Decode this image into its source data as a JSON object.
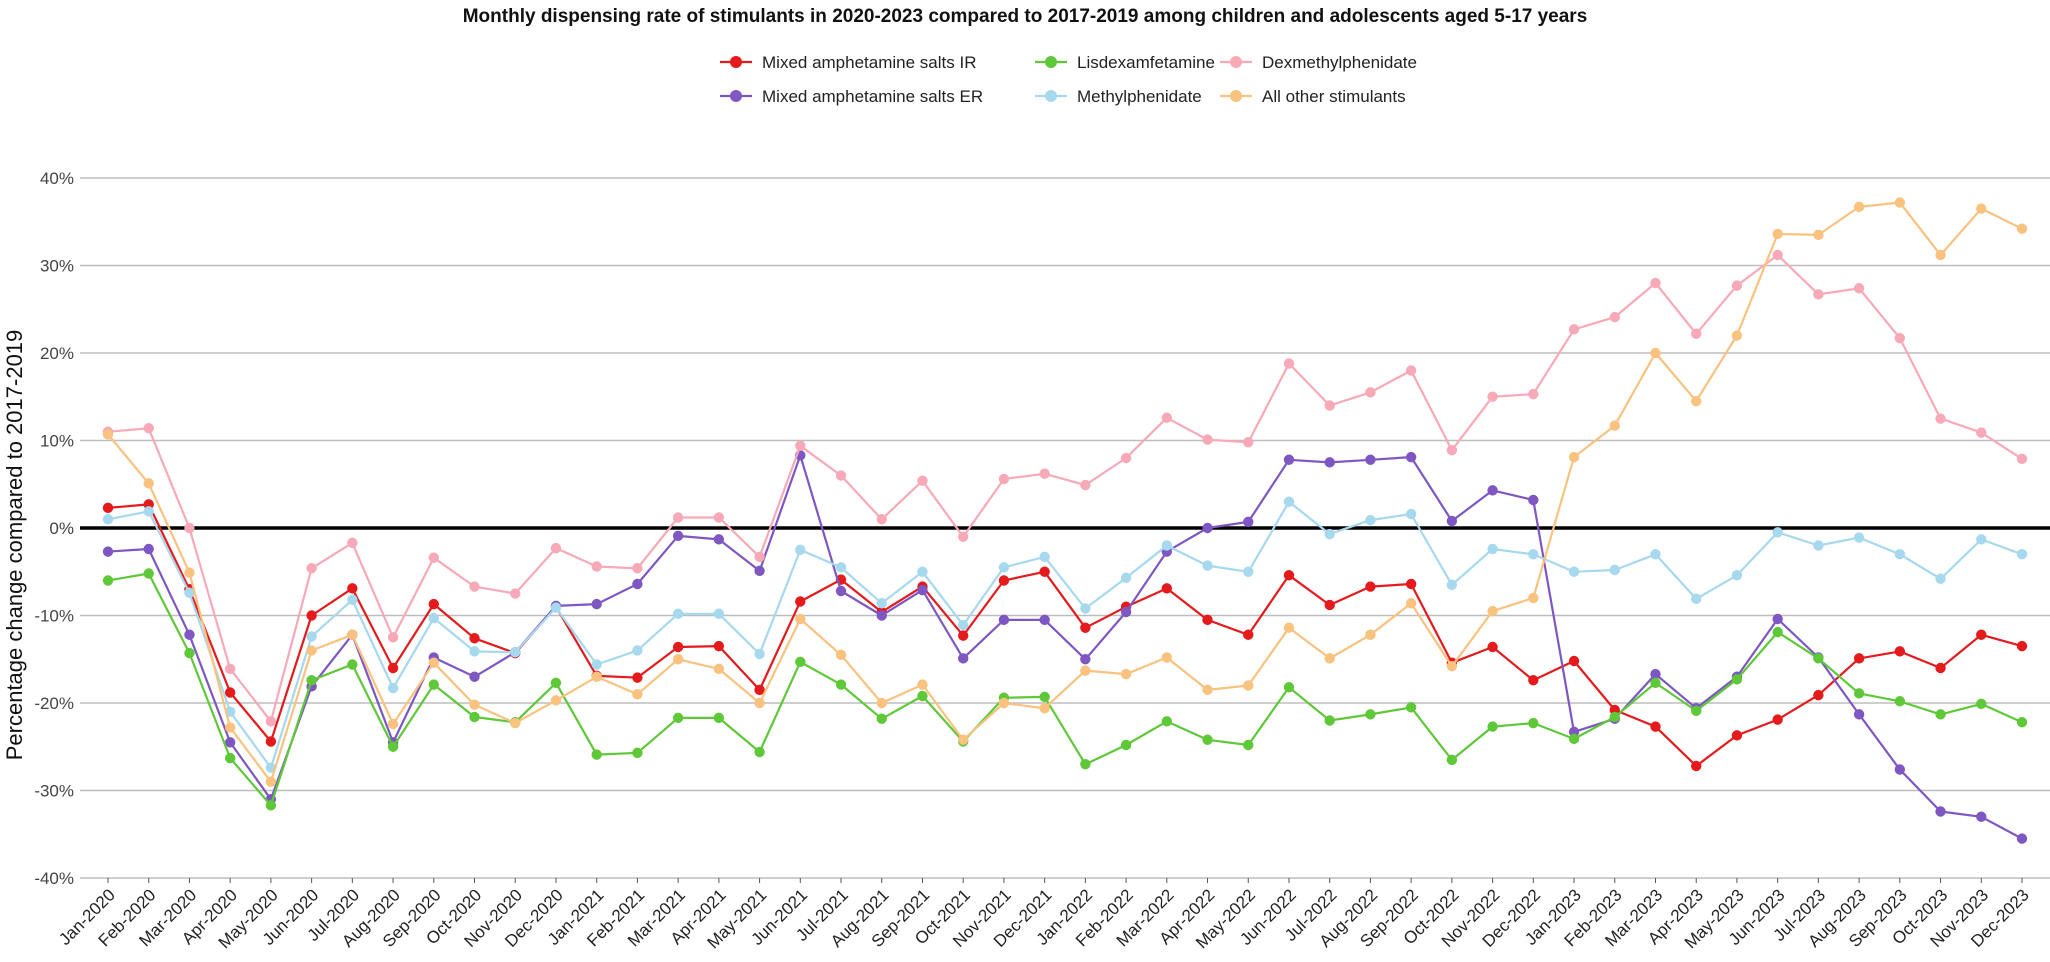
{
  "chart_data": {
    "type": "line",
    "title": "Monthly dispensing rate of stimulants in 2020-2023 compared to 2017-2019 among children and adolescents aged 5-17 years",
    "ylabel": "Percentage change compared to 2017-2019",
    "xlabel": "",
    "ylim": [
      -40,
      40
    ],
    "yticks": [
      40,
      30,
      20,
      10,
      0,
      -10,
      -20,
      -30,
      -40
    ],
    "ytick_labels": [
      "40%",
      "30%",
      "20%",
      "10%",
      "0%",
      "-10%",
      "-20%",
      "-30%",
      "-40%"
    ],
    "grid": true,
    "legend_position": "top",
    "categories": [
      "Jan-2020",
      "Feb-2020",
      "Mar-2020",
      "Apr-2020",
      "May-2020",
      "Jun-2020",
      "Jul-2020",
      "Aug-2020",
      "Sep-2020",
      "Oct-2020",
      "Nov-2020",
      "Dec-2020",
      "Jan-2021",
      "Feb-2021",
      "Mar-2021",
      "Apr-2021",
      "May-2021",
      "Jun-2021",
      "Jul-2021",
      "Aug-2021",
      "Sep-2021",
      "Oct-2021",
      "Nov-2021",
      "Dec-2021",
      "Jan-2022",
      "Feb-2022",
      "Mar-2022",
      "Apr-2022",
      "May-2022",
      "Jun-2022",
      "Jul-2022",
      "Aug-2022",
      "Sep-2022",
      "Oct-2022",
      "Nov-2022",
      "Dec-2022",
      "Jan-2023",
      "Feb-2023",
      "Mar-2023",
      "Apr-2023",
      "May-2023",
      "Jun-2023",
      "Jul-2023",
      "Aug-2023",
      "Sep-2023",
      "Oct-2023",
      "Nov-2023",
      "Dec-2023"
    ],
    "series": [
      {
        "name": "Mixed amphetamine salts IR",
        "color": "#E41A1C",
        "values": [
          2.3,
          2.7,
          -7,
          -18.8,
          -24.4,
          -10,
          -6.9,
          -16,
          -8.7,
          -12.6,
          -14.3,
          -9,
          -16.9,
          -17.1,
          -13.6,
          -13.5,
          -18.5,
          -8.4,
          -5.9,
          -9.6,
          -6.7,
          -12.3,
          -6,
          -5,
          -11.4,
          -9,
          -6.9,
          -10.5,
          -12.2,
          -5.4,
          -8.8,
          -6.7,
          -6.4,
          -15.4,
          -13.6,
          -17.4,
          -15.2,
          -20.8,
          -22.7,
          -27.2,
          -23.7,
          -21.9,
          -19.1,
          -14.9,
          -14.1,
          -16,
          -12.2,
          -13.5
        ]
      },
      {
        "name": "Mixed amphetamine salts ER",
        "color": "#7E57C2",
        "values": [
          -2.7,
          -2.4,
          -12.2,
          -24.5,
          -31,
          -18.1,
          -12.2,
          -24.5,
          -14.8,
          -17,
          -14.2,
          -8.9,
          -8.7,
          -6.4,
          -0.9,
          -1.3,
          -4.9,
          8.3,
          -7.2,
          -10,
          -7.1,
          -14.9,
          -10.5,
          -10.5,
          -15,
          -9.6,
          -2.7,
          0,
          0.7,
          7.8,
          7.5,
          7.8,
          8.1,
          0.8,
          4.3,
          3.2,
          -23.3,
          -21.8,
          -16.7,
          -20.6,
          -17,
          -10.4,
          -14.8,
          -21.3,
          -27.6,
          -32.4,
          -33,
          -35.5
        ]
      },
      {
        "name": "Lisdexamfetamine",
        "color": "#5FC839",
        "values": [
          -6,
          -5.2,
          -14.3,
          -26.3,
          -31.7,
          -17.4,
          -15.6,
          -25,
          -17.9,
          -21.6,
          -22.2,
          -17.7,
          -25.9,
          -25.7,
          -21.7,
          -21.7,
          -25.6,
          -15.3,
          -17.9,
          -21.8,
          -19.2,
          -24.4,
          -19.4,
          -19.3,
          -27,
          -24.8,
          -22.1,
          -24.2,
          -24.8,
          -18.2,
          -22,
          -21.3,
          -20.5,
          -26.5,
          -22.7,
          -22.3,
          -24.1,
          -21.6,
          -17.7,
          -20.9,
          -17.3,
          -11.9,
          -14.9,
          -18.9,
          -19.8,
          -21.3,
          -20.1,
          -22.2
        ]
      },
      {
        "name": "Methylphenidate",
        "color": "#A6D8EE",
        "values": [
          1,
          1.9,
          -7.4,
          -21,
          -27.4,
          -12.4,
          -8.2,
          -18.3,
          -10.3,
          -14.1,
          -14.2,
          -9.1,
          -15.6,
          -14,
          -9.8,
          -9.8,
          -14.4,
          -2.5,
          -4.5,
          -8.6,
          -5,
          -11.1,
          -4.5,
          -3.3,
          -9.2,
          -5.7,
          -2,
          -4.3,
          -5,
          3,
          -0.7,
          0.9,
          1.6,
          -6.5,
          -2.4,
          -3,
          -5,
          -4.8,
          -3,
          -8.1,
          -5.4,
          -0.5,
          -2,
          -1.1,
          -3,
          -5.8,
          -1.3,
          -3
        ]
      },
      {
        "name": "Dexmethylphenidate",
        "color": "#F8A9B8",
        "values": [
          11,
          11.4,
          0,
          -16.1,
          -22.1,
          -4.6,
          -1.7,
          -12.5,
          -3.4,
          -6.7,
          -7.5,
          -2.3,
          -4.4,
          -4.6,
          1.2,
          1.2,
          -3.3,
          9.4,
          6,
          1,
          5.4,
          -1,
          5.6,
          6.2,
          4.9,
          8,
          12.6,
          10.1,
          9.8,
          18.8,
          14,
          15.5,
          18,
          8.9,
          15,
          15.3,
          22.7,
          24.1,
          28,
          22.2,
          27.7,
          31.2,
          26.7,
          27.4,
          21.7,
          12.5,
          10.9,
          7.9
        ]
      },
      {
        "name": "All other stimulants",
        "color": "#F9C27F",
        "values": [
          10.7,
          5.1,
          -5.1,
          -22.8,
          -29,
          -14,
          -12.2,
          -22.4,
          -15.4,
          -20.2,
          -22.3,
          -19.7,
          -17,
          -19,
          -15,
          -16.1,
          -20,
          -10.4,
          -14.5,
          -20,
          -17.9,
          -24.2,
          -20,
          -20.6,
          -16.3,
          -16.7,
          -14.8,
          -18.5,
          -18,
          -11.4,
          -14.9,
          -12.2,
          -8.6,
          -15.8,
          -9.5,
          -8,
          8.1,
          11.7,
          20,
          14.5,
          22,
          33.6,
          33.5,
          36.7,
          37.2,
          31.2,
          36.5,
          34.2
        ]
      }
    ]
  }
}
